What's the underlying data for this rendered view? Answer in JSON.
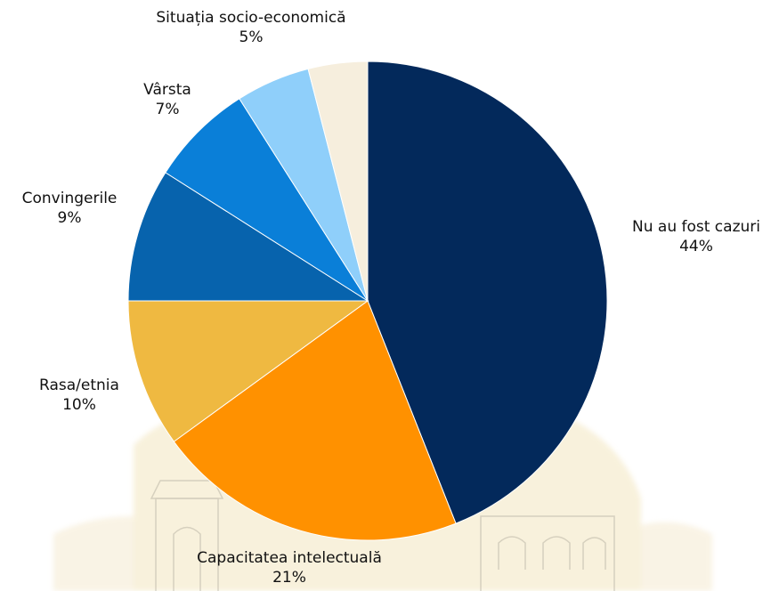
{
  "chart_data": {
    "type": "pie",
    "title": "",
    "start_angle_deg": 0,
    "direction": "clockwise",
    "slices": [
      {
        "label": "Nu au fost cazuri",
        "value": 44,
        "value_label": "44%",
        "color": "#03295b"
      },
      {
        "label": "Capacitatea intelectuală",
        "value": 21,
        "value_label": "21%",
        "color": "#ff9100"
      },
      {
        "label": "Rasa/etnia",
        "value": 10,
        "value_label": "10%",
        "color": "#efb941"
      },
      {
        "label": "Convingerile",
        "value": 9,
        "value_label": "9%",
        "color": "#0763ad"
      },
      {
        "label": "Vârsta",
        "value": 7,
        "value_label": "7%",
        "color": "#0a7fd8"
      },
      {
        "label": "Situația socio-economică",
        "value": 5,
        "value_label": "5%",
        "color": "#8fcffa"
      },
      {
        "label": "",
        "value": 4,
        "value_label": "",
        "color": "#f6eedd"
      }
    ],
    "slice_border_color": "#ffffff",
    "legend": "none"
  }
}
